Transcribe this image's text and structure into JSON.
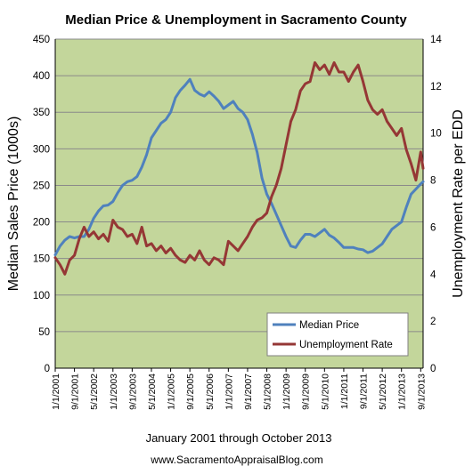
{
  "chart_data": {
    "type": "line",
    "title": "Median Price & Unemployment in Sacramento County",
    "subtitle": "January 2001 through October 2013",
    "footer": "www.SacramentoAppraisalBlog.com",
    "ylabel": "Median Sales Price (1000s)",
    "y2label": "Unemployment Rate per EDD",
    "ylim": [
      0,
      450
    ],
    "y2lim": [
      0,
      14
    ],
    "yticks": [
      "0",
      "50",
      "100",
      "150",
      "200",
      "250",
      "300",
      "350",
      "400",
      "450"
    ],
    "y2ticks": [
      "0",
      "2",
      "4",
      "6",
      "8",
      "10",
      "12",
      "14"
    ],
    "xlim": [
      "2001-01",
      "2013-10"
    ],
    "xticks": [
      "1/1/2001",
      "9/1/2001",
      "5/1/2002",
      "1/1/2003",
      "9/1/2003",
      "5/1/2004",
      "1/1/2005",
      "9/1/2005",
      "5/1/2006",
      "1/1/2007",
      "9/1/2007",
      "5/1/2008",
      "1/1/2009",
      "9/1/2009",
      "5/1/2010",
      "1/1/2011",
      "9/1/2011",
      "5/1/2012",
      "1/1/2013",
      "9/1/2013"
    ],
    "grid": "horizontal",
    "legend_position": "bottom-right",
    "plot_background": "#c3d69b",
    "series": [
      {
        "name": "Median Price",
        "axis": "left",
        "color": "#4f81bd",
        "points": [
          [
            "2001-01",
            155
          ],
          [
            "2001-03",
            167
          ],
          [
            "2001-05",
            175
          ],
          [
            "2001-07",
            180
          ],
          [
            "2001-09",
            178
          ],
          [
            "2001-11",
            180
          ],
          [
            "2002-01",
            180
          ],
          [
            "2002-03",
            190
          ],
          [
            "2002-05",
            205
          ],
          [
            "2002-07",
            215
          ],
          [
            "2002-09",
            222
          ],
          [
            "2002-11",
            223
          ],
          [
            "2003-01",
            228
          ],
          [
            "2003-03",
            240
          ],
          [
            "2003-05",
            250
          ],
          [
            "2003-07",
            255
          ],
          [
            "2003-09",
            257
          ],
          [
            "2003-11",
            262
          ],
          [
            "2004-01",
            275
          ],
          [
            "2004-03",
            292
          ],
          [
            "2004-05",
            315
          ],
          [
            "2004-07",
            325
          ],
          [
            "2004-09",
            335
          ],
          [
            "2004-11",
            340
          ],
          [
            "2005-01",
            350
          ],
          [
            "2005-03",
            370
          ],
          [
            "2005-05",
            380
          ],
          [
            "2005-07",
            387
          ],
          [
            "2005-09",
            395
          ],
          [
            "2005-11",
            380
          ],
          [
            "2006-01",
            375
          ],
          [
            "2006-03",
            372
          ],
          [
            "2006-05",
            378
          ],
          [
            "2006-07",
            372
          ],
          [
            "2006-09",
            365
          ],
          [
            "2006-11",
            355
          ],
          [
            "2007-01",
            360
          ],
          [
            "2007-03",
            365
          ],
          [
            "2007-05",
            355
          ],
          [
            "2007-07",
            350
          ],
          [
            "2007-09",
            340
          ],
          [
            "2007-11",
            320
          ],
          [
            "2008-01",
            295
          ],
          [
            "2008-03",
            260
          ],
          [
            "2008-05",
            238
          ],
          [
            "2008-07",
            225
          ],
          [
            "2008-09",
            210
          ],
          [
            "2008-11",
            195
          ],
          [
            "2009-01",
            180
          ],
          [
            "2009-03",
            167
          ],
          [
            "2009-05",
            165
          ],
          [
            "2009-07",
            175
          ],
          [
            "2009-09",
            183
          ],
          [
            "2009-11",
            183
          ],
          [
            "2010-01",
            180
          ],
          [
            "2010-03",
            185
          ],
          [
            "2010-05",
            190
          ],
          [
            "2010-07",
            182
          ],
          [
            "2010-09",
            178
          ],
          [
            "2010-11",
            172
          ],
          [
            "2011-01",
            165
          ],
          [
            "2011-03",
            165
          ],
          [
            "2011-05",
            165
          ],
          [
            "2011-07",
            163
          ],
          [
            "2011-09",
            162
          ],
          [
            "2011-11",
            158
          ],
          [
            "2012-01",
            160
          ],
          [
            "2012-03",
            165
          ],
          [
            "2012-05",
            170
          ],
          [
            "2012-07",
            180
          ],
          [
            "2012-09",
            190
          ],
          [
            "2012-11",
            195
          ],
          [
            "2013-01",
            200
          ],
          [
            "2013-03",
            220
          ],
          [
            "2013-05",
            238
          ],
          [
            "2013-07",
            245
          ],
          [
            "2013-09",
            252
          ],
          [
            "2013-10",
            255
          ]
        ]
      },
      {
        "name": "Unemployment Rate",
        "axis": "right",
        "color": "#953735",
        "points": [
          [
            "2001-01",
            4.7
          ],
          [
            "2001-03",
            4.4
          ],
          [
            "2001-05",
            4.0
          ],
          [
            "2001-07",
            4.6
          ],
          [
            "2001-09",
            4.8
          ],
          [
            "2001-11",
            5.5
          ],
          [
            "2002-01",
            6.0
          ],
          [
            "2002-03",
            5.6
          ],
          [
            "2002-05",
            5.8
          ],
          [
            "2002-07",
            5.5
          ],
          [
            "2002-09",
            5.7
          ],
          [
            "2002-11",
            5.4
          ],
          [
            "2003-01",
            6.3
          ],
          [
            "2003-03",
            6.0
          ],
          [
            "2003-05",
            5.9
          ],
          [
            "2003-07",
            5.6
          ],
          [
            "2003-09",
            5.7
          ],
          [
            "2003-11",
            5.3
          ],
          [
            "2004-01",
            6.0
          ],
          [
            "2004-03",
            5.2
          ],
          [
            "2004-05",
            5.3
          ],
          [
            "2004-07",
            5.0
          ],
          [
            "2004-09",
            5.2
          ],
          [
            "2004-11",
            4.9
          ],
          [
            "2005-01",
            5.1
          ],
          [
            "2005-03",
            4.8
          ],
          [
            "2005-05",
            4.6
          ],
          [
            "2005-07",
            4.5
          ],
          [
            "2005-09",
            4.8
          ],
          [
            "2005-11",
            4.6
          ],
          [
            "2006-01",
            5.0
          ],
          [
            "2006-03",
            4.6
          ],
          [
            "2006-05",
            4.4
          ],
          [
            "2006-07",
            4.7
          ],
          [
            "2006-09",
            4.6
          ],
          [
            "2006-11",
            4.4
          ],
          [
            "2007-01",
            5.4
          ],
          [
            "2007-03",
            5.2
          ],
          [
            "2007-05",
            5.0
          ],
          [
            "2007-07",
            5.3
          ],
          [
            "2007-09",
            5.6
          ],
          [
            "2007-11",
            6.0
          ],
          [
            "2008-01",
            6.3
          ],
          [
            "2008-03",
            6.4
          ],
          [
            "2008-05",
            6.6
          ],
          [
            "2008-07",
            7.3
          ],
          [
            "2008-09",
            7.8
          ],
          [
            "2008-11",
            8.5
          ],
          [
            "2009-01",
            9.5
          ],
          [
            "2009-03",
            10.5
          ],
          [
            "2009-05",
            11.0
          ],
          [
            "2009-07",
            11.8
          ],
          [
            "2009-09",
            12.1
          ],
          [
            "2009-11",
            12.2
          ],
          [
            "2010-01",
            13.0
          ],
          [
            "2010-03",
            12.7
          ],
          [
            "2010-05",
            12.9
          ],
          [
            "2010-07",
            12.5
          ],
          [
            "2010-09",
            13.0
          ],
          [
            "2010-11",
            12.6
          ],
          [
            "2011-01",
            12.6
          ],
          [
            "2011-03",
            12.2
          ],
          [
            "2011-05",
            12.6
          ],
          [
            "2011-07",
            12.9
          ],
          [
            "2011-09",
            12.2
          ],
          [
            "2011-11",
            11.4
          ],
          [
            "2012-01",
            11.0
          ],
          [
            "2012-03",
            10.8
          ],
          [
            "2012-05",
            11.0
          ],
          [
            "2012-07",
            10.5
          ],
          [
            "2012-09",
            10.2
          ],
          [
            "2012-11",
            9.9
          ],
          [
            "2013-01",
            10.2
          ],
          [
            "2013-03",
            9.3
          ],
          [
            "2013-05",
            8.7
          ],
          [
            "2013-07",
            8.0
          ],
          [
            "2013-09",
            9.2
          ],
          [
            "2013-10",
            8.5
          ]
        ]
      }
    ]
  }
}
